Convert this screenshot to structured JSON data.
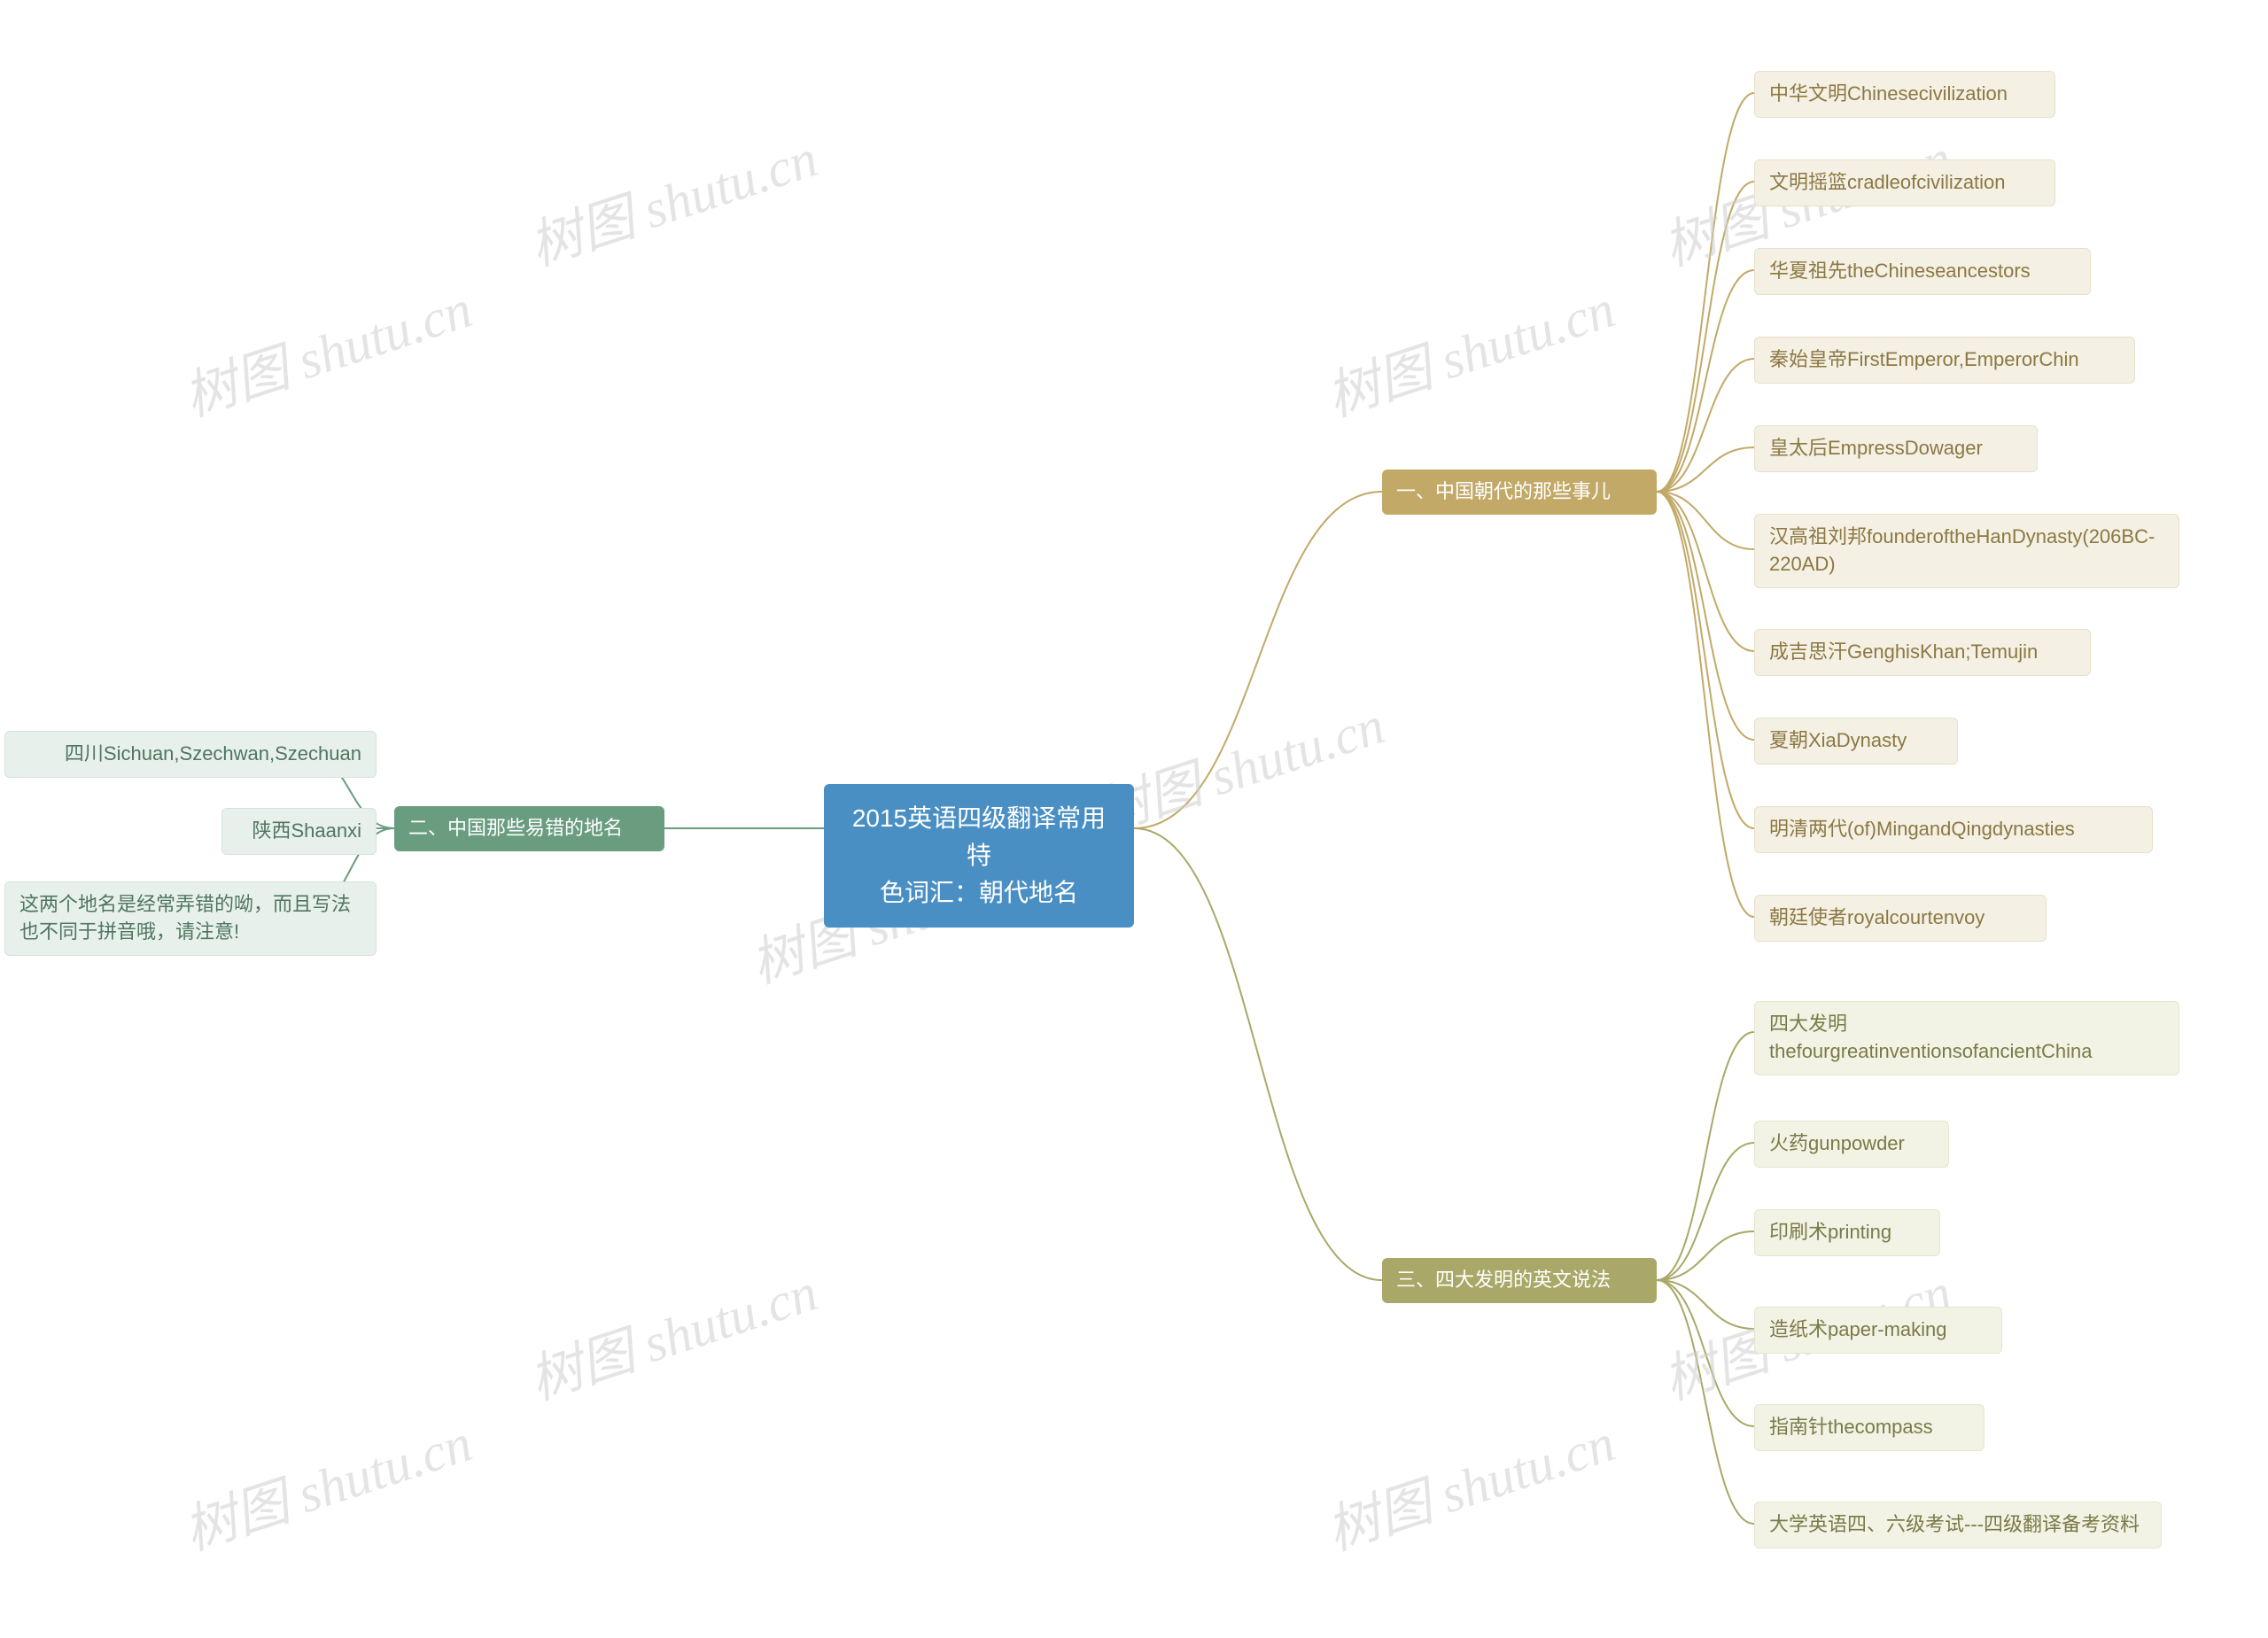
{
  "center": {
    "title": "2015英语四级翻译常用特\n色词汇：朝代地名",
    "bg": "#4a8fc3",
    "color": "#ffffff"
  },
  "branches": [
    {
      "id": "b1",
      "label": "一、中国朝代的那些事儿",
      "bg": "#c2a968",
      "color": "#ffffff",
      "leaf_bg": "#f4f0e3",
      "leaf_color": "#8c7843",
      "side": "right",
      "items": [
        "中华文明Chinesecivilization",
        "文明摇篮cradleofcivilization",
        "华夏祖先theChineseancestors",
        "秦始皇帝FirstEmperor,EmperorChin",
        "皇太后EmpressDowager",
        "汉高祖刘邦founderoftheHanDynasty(206BC-220AD)",
        "成吉思汗GenghisKhan;Temujin",
        "夏朝XiaDynasty",
        "明清两代(of)MingandQingdynasties",
        "朝廷使者royalcourtenvoy"
      ]
    },
    {
      "id": "b3",
      "label": "三、四大发明的英文说法",
      "bg": "#a9a868",
      "color": "#ffffff",
      "leaf_bg": "#f3f3e5",
      "leaf_color": "#7a7a48",
      "side": "right",
      "items": [
        "四大发明thefourgreatinventionsofancientChina",
        "火药gunpowder",
        "印刷术printing",
        "造纸术paper-making",
        "指南针thecompass",
        "大学英语四、六级考试---四级翻译备考资料"
      ]
    },
    {
      "id": "b2",
      "label": "二、中国那些易错的地名",
      "bg": "#6a9d80",
      "color": "#ffffff",
      "leaf_bg": "#e8f0eb",
      "leaf_color": "#4f7661",
      "side": "left",
      "items": [
        "四川Sichuan,Szechwan,Szechuan",
        "陕西Shaanxi",
        "这两个地名是经常弄错的呦，而且写法也不同于拼音哦，请注意!"
      ]
    }
  ],
  "watermark_text": "树图 shutu.cn",
  "connector_color_right1": "#c2a968",
  "connector_color_right3": "#a9a868",
  "connector_color_left": "#6a9d80",
  "connector_width": 2
}
